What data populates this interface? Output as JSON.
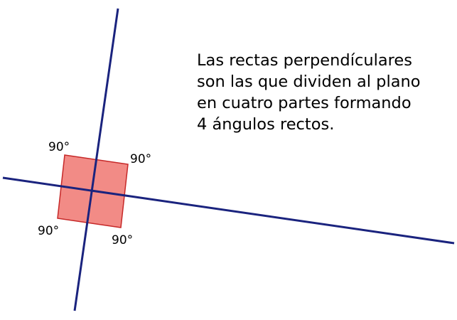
{
  "diagram": {
    "angle_labels": {
      "top_left": "90°",
      "top_right": "90°",
      "bottom_left": "90°",
      "bottom_right": "90°"
    },
    "description_lines": [
      "Las rectas perpendículares",
      "son las que dividen al plano",
      "en cuatro partes formando",
      "4 ángulos rectos."
    ],
    "colors": {
      "line": "#1a237e",
      "square_fill": "#f28b86",
      "square_stroke": "#c62828",
      "text": "#000000"
    }
  }
}
